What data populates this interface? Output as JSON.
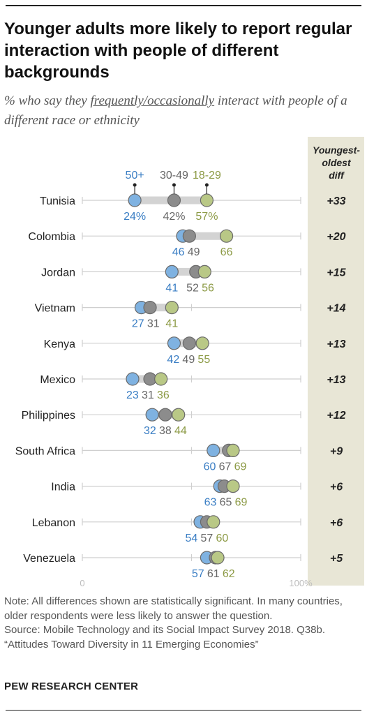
{
  "title": "Younger adults more likely to report regular interaction with people of different backgrounds",
  "subtitle": {
    "prefix": "% who say they ",
    "underlined": "frequently/occasionally",
    "suffix": " interact with people of a different race or ethnicity"
  },
  "notes": {
    "note": "Note: All differences shown are statistically significant. In many countries, older respondents were less likely to answer the question.",
    "source": "Source: Mobile Technology and its Social Impact Survey 2018. Q38b.",
    "report": "“Attitudes Toward Diversity in 11 Emerging Economies”"
  },
  "brand": "PEW RESEARCH CENTER",
  "colors": {
    "age_50_plus": "#7fb2e1",
    "age_30_49": "#8c8c8c",
    "age_18_29": "#b9c886",
    "age_50_plus_label": "#3a7ec4",
    "age_30_49_label": "#666666",
    "age_18_29_label": "#8c9a45",
    "diff_panel": "#e8e6d6"
  },
  "chart_data": {
    "type": "dot",
    "title": "",
    "xlim": [
      0,
      100
    ],
    "axis_labels": [
      "0",
      "100%"
    ],
    "diff_header": [
      "Youngest-",
      "oldest",
      "diff"
    ],
    "series": [
      {
        "name": "50+",
        "key": "age_50_plus"
      },
      {
        "name": "30-49",
        "key": "age_30_49"
      },
      {
        "name": "18-29",
        "key": "age_18_29"
      }
    ],
    "categories": [
      "Tunisia",
      "Colombia",
      "Jordan",
      "Vietnam",
      "Kenya",
      "Mexico",
      "Philippines",
      "South Africa",
      "India",
      "Lebanon",
      "Venezuela"
    ],
    "values": {
      "age_50_plus": [
        24,
        46,
        41,
        27,
        42,
        23,
        32,
        60,
        63,
        54,
        57
      ],
      "age_30_49": [
        42,
        49,
        52,
        31,
        49,
        31,
        38,
        67,
        65,
        57,
        61
      ],
      "age_18_29": [
        57,
        66,
        56,
        41,
        55,
        36,
        44,
        69,
        69,
        60,
        62
      ]
    },
    "first_row_suffix": "%",
    "diff": [
      "+33",
      "+20",
      "+15",
      "+14",
      "+13",
      "+13",
      "+12",
      "+9",
      "+6",
      "+6",
      "+5"
    ]
  }
}
